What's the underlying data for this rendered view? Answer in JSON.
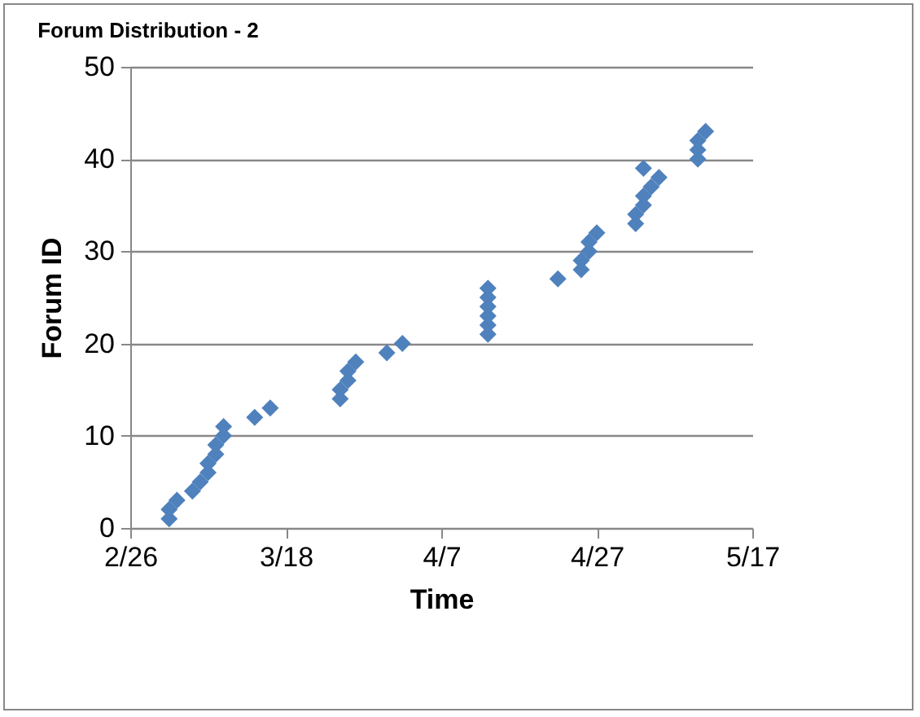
{
  "chart_data": {
    "type": "scatter",
    "title": "Forum Distribution - 2",
    "xlabel": "Time",
    "ylabel": "Forum ID",
    "x": [
      "--03-03",
      "--03-03",
      "--03-04",
      "--03-06",
      "--03-07",
      "--03-08",
      "--03-08",
      "--03-09",
      "--03-09",
      "--03-10",
      "--03-10",
      "--03-14",
      "--03-16",
      "--03-25",
      "--03-25",
      "--03-26",
      "--03-26",
      "--03-27",
      "--03-31",
      "--04-02",
      "--04-13",
      "--04-13",
      "--04-13",
      "--04-13",
      "--04-13",
      "--04-13",
      "--04-22",
      "--04-25",
      "--04-25",
      "--04-26",
      "--04-26",
      "--04-27",
      "--05-02",
      "--05-02",
      "--05-03",
      "--05-03",
      "--05-04",
      "--05-05",
      "--05-03",
      "--05-10",
      "--05-10",
      "--05-10",
      "--05-11"
    ],
    "series": [
      {
        "color": "#4f81bd",
        "values": [
          1,
          2,
          3,
          4,
          5,
          6,
          7,
          8,
          9,
          10,
          11,
          12,
          13,
          14,
          15,
          16,
          17,
          18,
          19,
          20,
          21,
          22,
          23,
          24,
          25,
          26,
          27,
          28,
          29,
          30,
          31,
          32,
          33,
          34,
          35,
          36,
          37,
          38,
          39,
          40,
          41,
          42,
          43
        ]
      }
    ],
    "xlim": [
      "--02-26",
      "--05-17"
    ],
    "xticks": [
      {
        "value": "--02-26",
        "label": "2/26"
      },
      {
        "value": "--03-18",
        "label": "3/18"
      },
      {
        "value": "--04-07",
        "label": "4/7"
      },
      {
        "value": "--04-27",
        "label": "4/27"
      },
      {
        "value": "--05-17",
        "label": "5/17"
      }
    ],
    "ylim": [
      0,
      50
    ],
    "yticks": [
      0,
      10,
      20,
      30,
      40,
      50
    ],
    "grid": "y",
    "marker": "diamond"
  }
}
